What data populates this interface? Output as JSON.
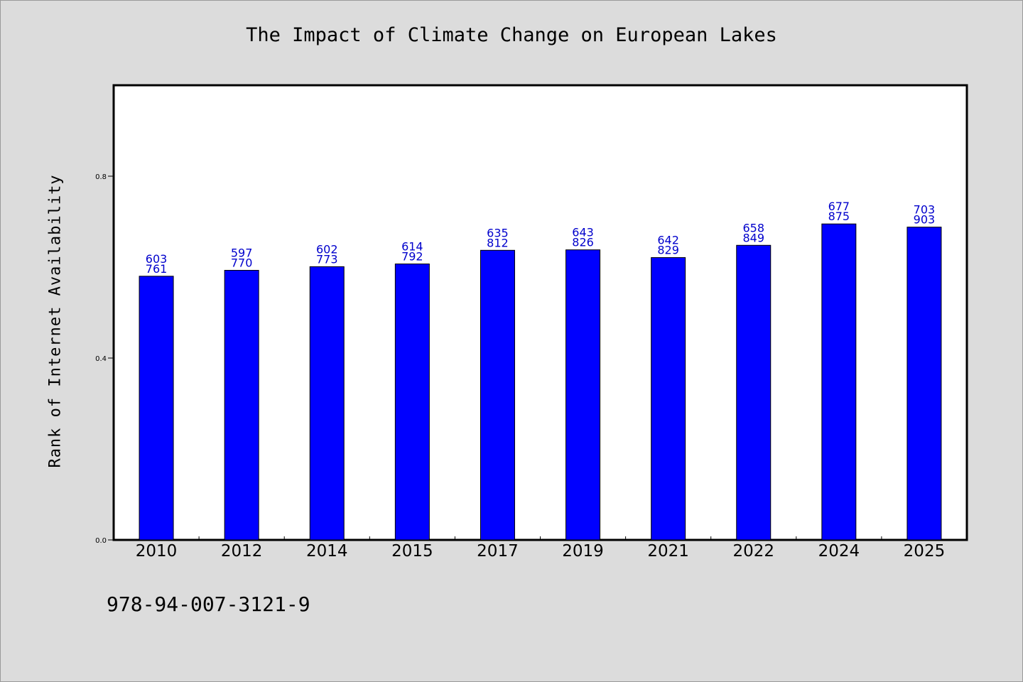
{
  "chart_data": {
    "type": "bar",
    "title": "The Impact of Climate Change on European Lakes",
    "xlabel": "",
    "ylabel": "Rank of Internet Availability",
    "categories": [
      "2010",
      "2012",
      "2014",
      "2015",
      "2017",
      "2019",
      "2021",
      "2022",
      "2024",
      "2025"
    ],
    "values": [
      0.58,
      0.593,
      0.601,
      0.607,
      0.637,
      0.638,
      0.621,
      0.648,
      0.695,
      0.688
    ],
    "annotations_top": [
      "603",
      "597",
      "602",
      "614",
      "635",
      "643",
      "642",
      "658",
      "677",
      "703"
    ],
    "annotations_bottom": [
      "761",
      "770",
      "773",
      "792",
      "812",
      "826",
      "829",
      "849",
      "875",
      "903"
    ],
    "yticks": [
      "0.0",
      "0.4",
      "0.8"
    ],
    "ylim": [
      0,
      1.0
    ],
    "grid": false,
    "legend": "none",
    "bar_color": "#0000ff",
    "label_color": "#0000cc"
  },
  "footer_text": "978-94-007-3121-9"
}
